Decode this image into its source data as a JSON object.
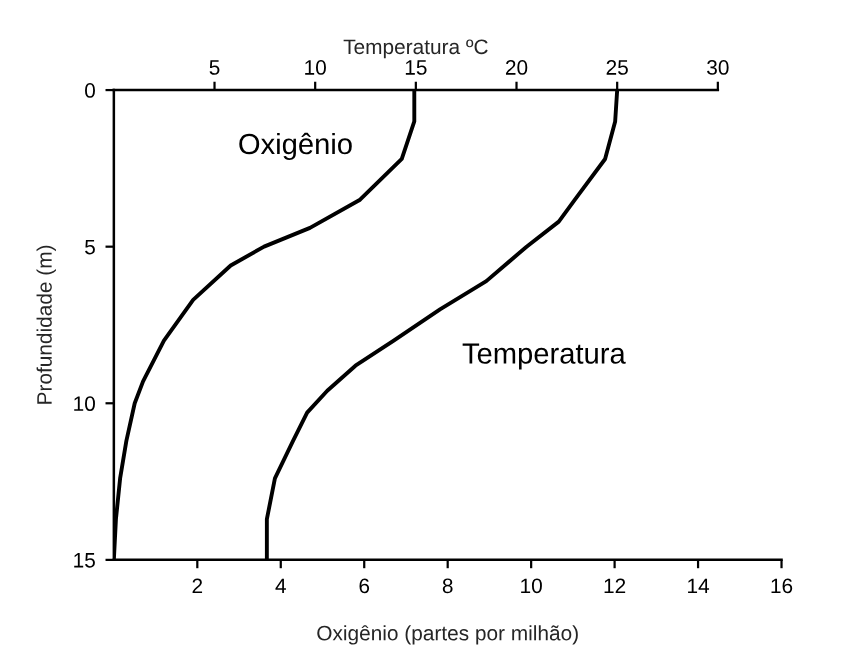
{
  "chart_data": {
    "type": "line",
    "xlabel": "Oxigênio (partes por milhão)",
    "x2label": "Temperatura ºC",
    "ylabel": "Profundidade (m)",
    "xlim": [
      0,
      16
    ],
    "xticks": [
      2,
      4,
      6,
      8,
      10,
      12,
      14,
      16
    ],
    "x2lim": [
      0,
      30
    ],
    "x2ticks": [
      5,
      10,
      15,
      20,
      25,
      30
    ],
    "ylim": [
      15,
      0
    ],
    "yticks": [
      0,
      5,
      10,
      15
    ],
    "grid": false,
    "legend": false,
    "marker": "none",
    "line_style": "solid",
    "series": [
      {
        "name": "Oxigênio",
        "color": "#000000",
        "x": [
          7.2,
          7.2,
          6.9,
          5.9,
          4.7,
          3.6,
          2.8,
          1.9,
          1.2,
          0.7,
          0.5,
          0.3,
          0.15,
          0.05,
          0
        ],
        "values": [
          0,
          1,
          2.2,
          3.5,
          4.4,
          5,
          5.6,
          6.7,
          8,
          9.3,
          10,
          11.2,
          12.4,
          13.7,
          15
        ]
      },
      {
        "name": "Temperatura",
        "color": "#000000",
        "axis": "x2",
        "x": [
          25,
          24.9,
          24.4,
          22.9,
          22.1,
          20.5,
          18.5,
          16.2,
          13.9,
          12,
          10.6,
          9.6,
          8.9,
          8,
          7.6,
          7.6
        ],
        "values": [
          0,
          1,
          2.2,
          3.5,
          4.2,
          5,
          6.1,
          7,
          8,
          8.8,
          9.6,
          10.3,
          11.2,
          12.4,
          13.7,
          15
        ]
      }
    ]
  }
}
